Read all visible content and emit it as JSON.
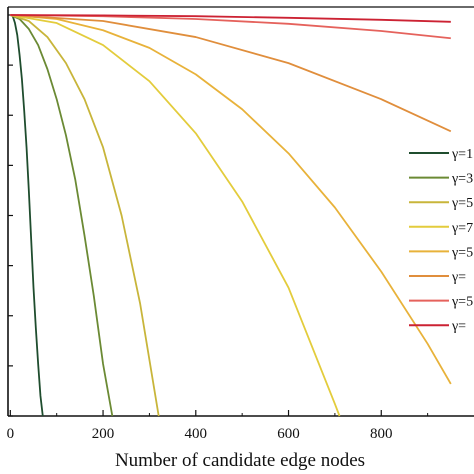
{
  "chart_data": {
    "type": "line",
    "title": "",
    "xlabel": "Number of candidate edge nodes",
    "ylabel": "",
    "xlim": [
      -5,
      1000
    ],
    "ylim": [
      0,
      1
    ],
    "x_ticks": [
      "0",
      "200",
      "400",
      "600",
      "800"
    ],
    "grid": false,
    "legend_position": "right",
    "series": [
      {
        "name": "γ=1",
        "color": "#1f4d2e",
        "x": [
          0,
          5,
          10,
          15,
          20,
          25,
          30,
          35,
          40,
          45,
          50,
          55,
          60,
          65,
          70
        ],
        "y": [
          1.0,
          0.998,
          0.98,
          0.95,
          0.9,
          0.84,
          0.76,
          0.67,
          0.56,
          0.44,
          0.32,
          0.22,
          0.13,
          0.05,
          0.0
        ]
      },
      {
        "name": "γ=3",
        "color": "#6b8a34",
        "x": [
          0,
          20,
          40,
          60,
          80,
          100,
          120,
          140,
          160,
          180,
          200,
          220
        ],
        "y": [
          1.0,
          0.99,
          0.965,
          0.925,
          0.865,
          0.79,
          0.7,
          0.59,
          0.45,
          0.3,
          0.13,
          0.0
        ]
      },
      {
        "name": "γ=5",
        "color": "#c8b53a",
        "x": [
          0,
          40,
          80,
          120,
          160,
          200,
          240,
          280,
          320
        ],
        "y": [
          1.0,
          0.985,
          0.945,
          0.88,
          0.79,
          0.67,
          0.5,
          0.28,
          0.0
        ]
      },
      {
        "name": "γ=7",
        "color": "#e3cc3c",
        "x": [
          0,
          100,
          200,
          300,
          400,
          500,
          600,
          700,
          710
        ],
        "y": [
          1.0,
          0.98,
          0.925,
          0.835,
          0.705,
          0.535,
          0.32,
          0.03,
          0.0
        ]
      },
      {
        "name": "γ=5",
        "color": "#e8b23a",
        "x": [
          0,
          100,
          200,
          300,
          400,
          500,
          600,
          700,
          800,
          900,
          950
        ],
        "y": [
          1.0,
          0.99,
          0.962,
          0.918,
          0.852,
          0.765,
          0.655,
          0.52,
          0.36,
          0.18,
          0.08
        ]
      },
      {
        "name": "γ=",
        "color": "#e08e3c",
        "x": [
          0,
          200,
          400,
          600,
          800,
          950
        ],
        "y": [
          1.0,
          0.985,
          0.945,
          0.88,
          0.79,
          0.71
        ]
      },
      {
        "name": "γ=5",
        "color": "#e5625c",
        "x": [
          0,
          200,
          400,
          600,
          800,
          950
        ],
        "y": [
          1.0,
          0.997,
          0.99,
          0.978,
          0.96,
          0.942
        ]
      },
      {
        "name": "γ=",
        "color": "#cc2233",
        "x": [
          0,
          200,
          400,
          600,
          800,
          950
        ],
        "y": [
          1.0,
          0.999,
          0.997,
          0.993,
          0.988,
          0.983
        ]
      }
    ]
  }
}
